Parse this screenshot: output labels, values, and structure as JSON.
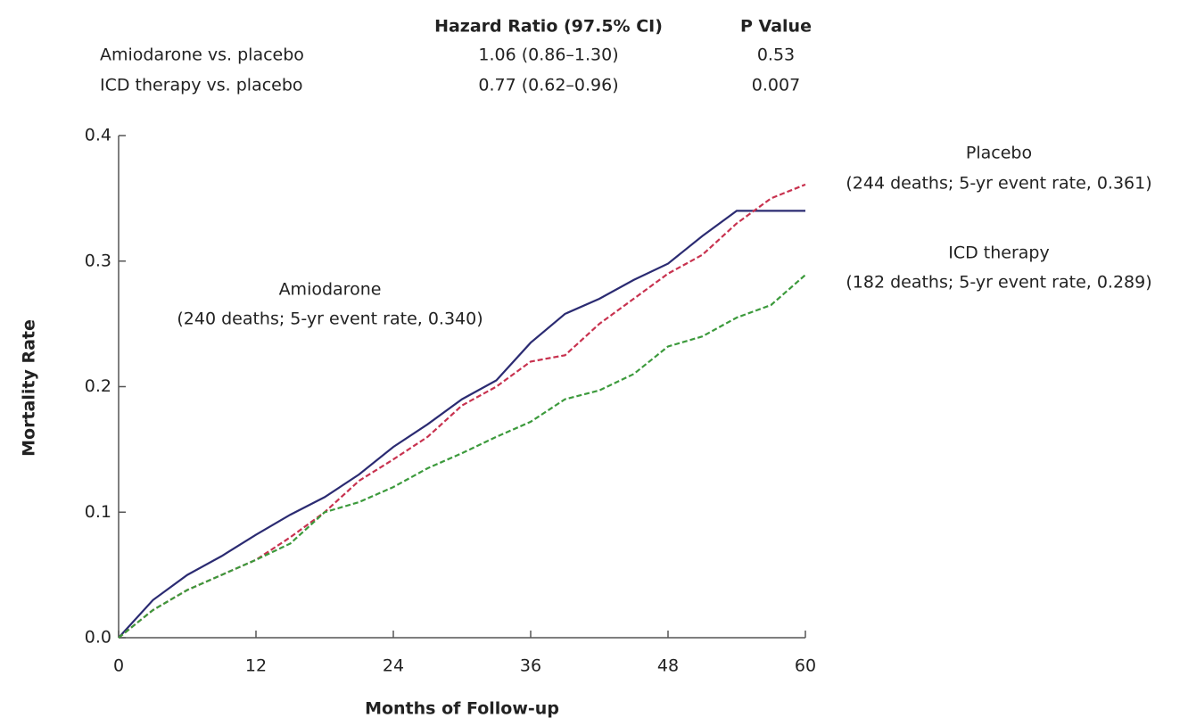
{
  "chart_data": {
    "type": "line",
    "table": {
      "columns": [
        "Hazard Ratio (97.5% CI)",
        "P Value"
      ],
      "rows": [
        [
          "Amiodarone vs. placebo",
          "1.06 (0.86–1.30)",
          "0.53"
        ],
        [
          "ICD therapy vs. placebo",
          "0.77 (0.62–0.96)",
          "0.007"
        ]
      ]
    },
    "x_label": "Months of Follow-up",
    "y_label": "Mortality Rate",
    "x": [
      0,
      3,
      6,
      9,
      12,
      15,
      18,
      21,
      24,
      27,
      30,
      33,
      36,
      39,
      42,
      45,
      48,
      51,
      54,
      57,
      60
    ],
    "series": [
      {
        "name": "Amiodarone",
        "detail": "(240 deaths; 5-yr event rate, 0.340)",
        "color": "#2b2b72",
        "style": "solid",
        "values": [
          0,
          0.03,
          0.05,
          0.065,
          0.082,
          0.098,
          0.112,
          0.13,
          0.152,
          0.17,
          0.19,
          0.205,
          0.235,
          0.258,
          0.27,
          0.285,
          0.298,
          0.32,
          0.34,
          0.34,
          0.34
        ]
      },
      {
        "name": "Placebo",
        "detail": "(244 deaths; 5-yr event rate, 0.361)",
        "color": "#c8324f",
        "style": "dashed",
        "values": [
          0,
          0.022,
          0.038,
          0.05,
          0.062,
          0.08,
          0.1,
          0.125,
          0.142,
          0.16,
          0.185,
          0.2,
          0.22,
          0.225,
          0.25,
          0.27,
          0.29,
          0.305,
          0.33,
          0.35,
          0.361
        ]
      },
      {
        "name": "ICD therapy",
        "detail": "(182 deaths; 5-yr event rate, 0.289)",
        "color": "#3c9a3c",
        "style": "dashed",
        "values": [
          0,
          0.022,
          0.038,
          0.05,
          0.062,
          0.075,
          0.1,
          0.108,
          0.12,
          0.135,
          0.147,
          0.16,
          0.172,
          0.19,
          0.197,
          0.21,
          0.232,
          0.24,
          0.255,
          0.265,
          0.289
        ]
      }
    ],
    "xlim": [
      0,
      60
    ],
    "xticks": [
      0,
      12,
      24,
      36,
      48,
      60
    ],
    "ylim": [
      0,
      0.4
    ],
    "yticks": [
      {
        "value": 0,
        "label": "0.0"
      },
      0.1,
      0.2,
      0.3,
      0.4
    ]
  }
}
